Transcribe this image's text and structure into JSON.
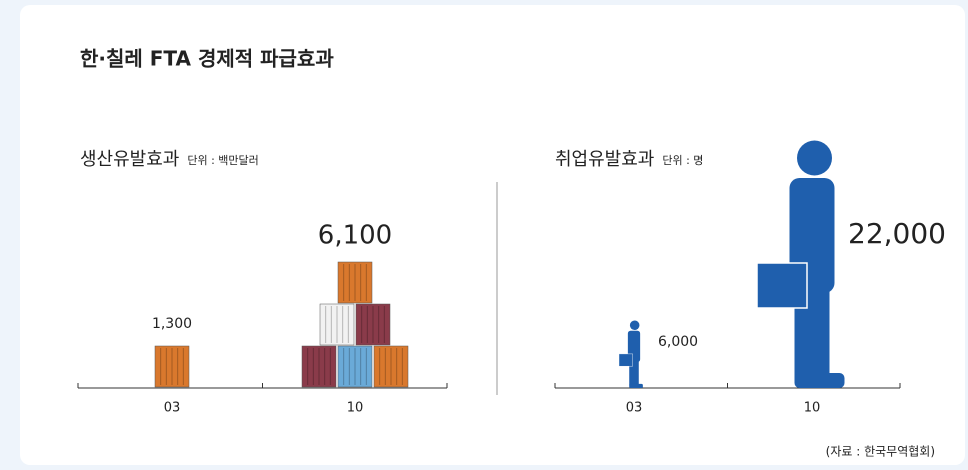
{
  "title": "한·칠레 FTA 경제적 파급효과",
  "source": "(자료 : 한국무역협회)",
  "chart_data": [
    {
      "type": "pictograph",
      "icon": "container",
      "title": "생산유발효과",
      "unit": "단위 : 백만달러",
      "categories": [
        "03",
        "10"
      ],
      "values": [
        1300,
        6100
      ],
      "value_labels": [
        "1,300",
        "6,100"
      ],
      "colors": [
        "#d9782d",
        "#f2f2f2",
        "#8a3b4a",
        "#6aaad8"
      ]
    },
    {
      "type": "pictograph",
      "icon": "person",
      "title": "취업유발효과",
      "unit": "단위 : 명",
      "categories": [
        "03",
        "10"
      ],
      "values": [
        6000,
        22000
      ],
      "value_labels": [
        "6,000",
        "22,000"
      ],
      "color": "#1f5fad"
    }
  ]
}
